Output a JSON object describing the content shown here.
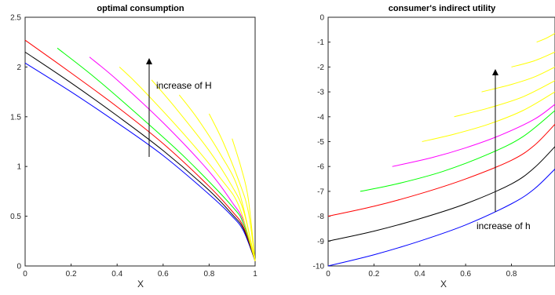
{
  "chart_data": [
    {
      "type": "line",
      "title": "optimal consumption",
      "xlabel": "X",
      "ylabel": "",
      "xlim": [
        0,
        1
      ],
      "ylim": [
        0,
        2.5
      ],
      "xticks": [
        "0",
        "0.2",
        "0.4",
        "0.6",
        "0.8",
        "1"
      ],
      "yticks": [
        "0",
        "0.5",
        "1",
        "1.5",
        "2",
        "2.5"
      ],
      "grid": false,
      "annotation": "increase of H",
      "series": [
        {
          "color": "#0000ff",
          "x": [
            0,
            0.2,
            0.4,
            0.6,
            0.8,
            0.9,
            0.95,
            1
          ],
          "y": [
            2.04,
            1.75,
            1.44,
            1.11,
            0.72,
            0.5,
            0.35,
            0.05
          ]
        },
        {
          "color": "#000000",
          "x": [
            0,
            0.2,
            0.4,
            0.6,
            0.8,
            0.9,
            0.95,
            1
          ],
          "y": [
            2.15,
            1.84,
            1.51,
            1.16,
            0.76,
            0.52,
            0.37,
            0.05
          ]
        },
        {
          "color": "#ff0000",
          "x": [
            0,
            0.2,
            0.4,
            0.6,
            0.8,
            0.9,
            0.95,
            1
          ],
          "y": [
            2.27,
            1.94,
            1.6,
            1.23,
            0.8,
            0.55,
            0.39,
            0.05
          ]
        },
        {
          "color": "#00ff00",
          "x": [
            0.14,
            0.3,
            0.5,
            0.7,
            0.9,
            0.95,
            1
          ],
          "y": [
            2.19,
            1.9,
            1.5,
            1.08,
            0.6,
            0.42,
            0.05
          ]
        },
        {
          "color": "#ff00ff",
          "x": [
            0.28,
            0.4,
            0.6,
            0.8,
            0.9,
            0.95,
            1
          ],
          "y": [
            2.1,
            1.87,
            1.44,
            0.95,
            0.64,
            0.45,
            0.05
          ]
        },
        {
          "color": "#ffff00",
          "x": [
            0.41,
            0.5,
            0.7,
            0.85,
            0.93,
            1
          ],
          "y": [
            2.0,
            1.8,
            1.3,
            0.88,
            0.6,
            0.05
          ]
        },
        {
          "color": "#ffff00",
          "x": [
            0.55,
            0.65,
            0.8,
            0.9,
            0.95,
            1
          ],
          "y": [
            1.87,
            1.6,
            1.16,
            0.8,
            0.55,
            0.05
          ]
        },
        {
          "color": "#ffff00",
          "x": [
            0.67,
            0.75,
            0.85,
            0.93,
            1
          ],
          "y": [
            1.72,
            1.48,
            1.12,
            0.75,
            0.05
          ]
        },
        {
          "color": "#ffff00",
          "x": [
            0.8,
            0.86,
            0.93,
            0.97,
            1
          ],
          "y": [
            1.53,
            1.25,
            0.85,
            0.55,
            0.05
          ]
        },
        {
          "color": "#ffff00",
          "x": [
            0.9,
            0.94,
            0.97,
            1
          ],
          "y": [
            1.28,
            0.98,
            0.68,
            0.05
          ]
        }
      ]
    },
    {
      "type": "line",
      "title": "consumer's indirect utility",
      "xlabel": "X",
      "ylabel": "",
      "xlim": [
        0,
        0.99
      ],
      "ylim": [
        -10,
        0
      ],
      "xticks": [
        "0",
        "0.2",
        "0.4",
        "0.6",
        "0.8"
      ],
      "yticks": [
        "0",
        "-1",
        "-2",
        "-3",
        "-4",
        "-5",
        "-6",
        "-7",
        "-8",
        "-9",
        "-10"
      ],
      "grid": false,
      "annotation": "increase of h",
      "series": [
        {
          "color": "#0000ff",
          "x": [
            0,
            0.2,
            0.4,
            0.6,
            0.8,
            0.9,
            0.99
          ],
          "y": [
            -10.0,
            -9.55,
            -9.0,
            -8.35,
            -7.5,
            -6.9,
            -6.1
          ]
        },
        {
          "color": "#000000",
          "x": [
            0,
            0.2,
            0.4,
            0.6,
            0.8,
            0.9,
            0.99
          ],
          "y": [
            -9.0,
            -8.6,
            -8.1,
            -7.5,
            -6.7,
            -6.05,
            -5.2
          ]
        },
        {
          "color": "#ff0000",
          "x": [
            0,
            0.2,
            0.4,
            0.6,
            0.8,
            0.9,
            0.99
          ],
          "y": [
            -8.0,
            -7.6,
            -7.1,
            -6.5,
            -5.75,
            -5.15,
            -4.3
          ]
        },
        {
          "color": "#00ff00",
          "x": [
            0.14,
            0.3,
            0.5,
            0.7,
            0.85,
            0.99
          ],
          "y": [
            -7.0,
            -6.7,
            -6.2,
            -5.5,
            -4.8,
            -3.75
          ]
        },
        {
          "color": "#ff00ff",
          "x": [
            0.28,
            0.45,
            0.6,
            0.75,
            0.9,
            0.99
          ],
          "y": [
            -6.0,
            -5.65,
            -5.25,
            -4.75,
            -4.1,
            -3.5
          ]
        },
        {
          "color": "#ffff00",
          "x": [
            0.41,
            0.55,
            0.7,
            0.85,
            0.99
          ],
          "y": [
            -5.0,
            -4.7,
            -4.3,
            -3.75,
            -3.0
          ]
        },
        {
          "color": "#ffff00",
          "x": [
            0.55,
            0.7,
            0.85,
            0.99
          ],
          "y": [
            -4.0,
            -3.65,
            -3.2,
            -2.55
          ]
        },
        {
          "color": "#ffff00",
          "x": [
            0.67,
            0.8,
            0.9,
            0.99
          ],
          "y": [
            -3.0,
            -2.7,
            -2.4,
            -2.0
          ]
        },
        {
          "color": "#ffff00",
          "x": [
            0.8,
            0.9,
            0.99
          ],
          "y": [
            -2.0,
            -1.75,
            -1.4
          ]
        },
        {
          "color": "#ffff00",
          "x": [
            0.91,
            0.95,
            0.99
          ],
          "y": [
            -1.0,
            -0.85,
            -0.65
          ]
        }
      ]
    }
  ]
}
